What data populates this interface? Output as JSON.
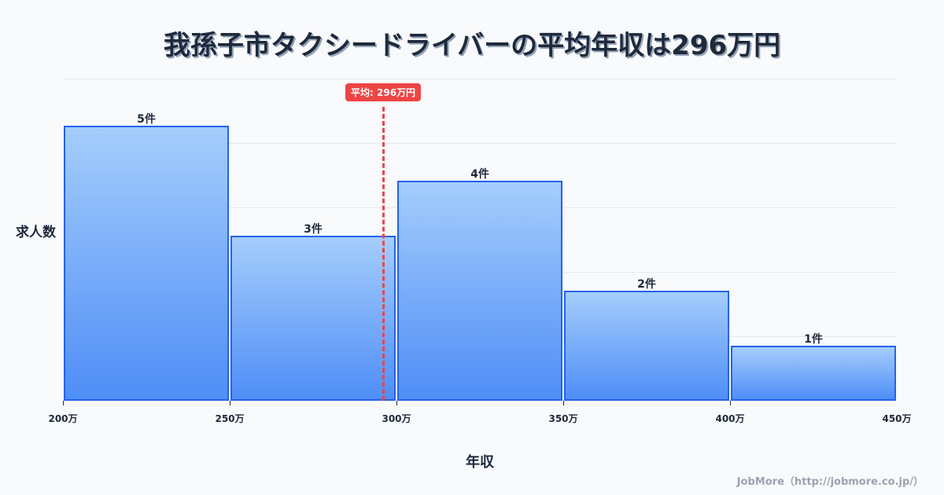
{
  "title": "我孫子市タクシードライバーの平均年収は296万円",
  "chart_data": {
    "type": "bar",
    "title": "我孫子市タクシードライバーの平均年収は296万円",
    "xlabel": "年収",
    "ylabel": "求人数",
    "categories": [
      "200万-250万",
      "250万-300万",
      "300万-350万",
      "350万-400万",
      "400万-450万"
    ],
    "values": [
      5,
      3,
      4,
      2,
      1
    ],
    "value_labels": [
      "5件",
      "3件",
      "4件",
      "2件",
      "1件"
    ],
    "x_ticks": [
      "200万",
      "250万",
      "300万",
      "350万",
      "400万",
      "450万"
    ],
    "x_range": [
      200,
      450
    ],
    "y_max": 5.86,
    "grid": true,
    "average": {
      "value": 296,
      "label": "平均: 296万円",
      "color": "#ef4444"
    },
    "bar_color_top": "#a5cdfc",
    "bar_color_bottom": "#4f8ef7",
    "bar_border": "#2563eb"
  },
  "axis": {
    "x_label": "年収",
    "y_label": "求人数"
  },
  "credit": "JobMore（http://jobmore.co.jp/）"
}
